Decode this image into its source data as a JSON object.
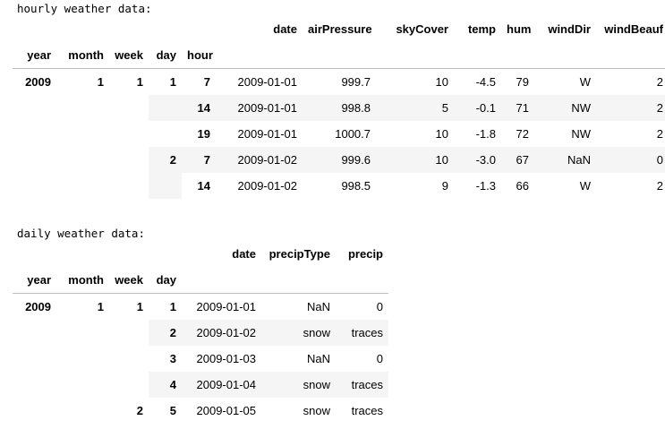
{
  "hourly": {
    "caption": "hourly weather data:",
    "columns": [
      "date",
      "airPressure",
      "skyCover",
      "temp",
      "hum",
      "windDir",
      "windBeauf"
    ],
    "index_names": [
      "year",
      "month",
      "week",
      "day",
      "hour"
    ],
    "rows": [
      {
        "idx": [
          "2009",
          "1",
          "1",
          "1",
          "7"
        ],
        "vals": [
          "2009-01-01",
          "999.7",
          "10",
          "-4.5",
          "79",
          "W",
          "2"
        ]
      },
      {
        "idx": [
          "",
          "",
          "",
          "",
          "14"
        ],
        "vals": [
          "2009-01-01",
          "998.8",
          "5",
          "-0.1",
          "71",
          "NW",
          "2"
        ]
      },
      {
        "idx": [
          "",
          "",
          "",
          "",
          "19"
        ],
        "vals": [
          "2009-01-01",
          "1000.7",
          "10",
          "-1.8",
          "72",
          "NW",
          "2"
        ]
      },
      {
        "idx": [
          "",
          "",
          "",
          "2",
          "7"
        ],
        "vals": [
          "2009-01-02",
          "999.6",
          "10",
          "-3.0",
          "67",
          "NaN",
          "0"
        ]
      },
      {
        "idx": [
          "",
          "",
          "",
          "",
          "14"
        ],
        "vals": [
          "2009-01-02",
          "998.5",
          "9",
          "-1.3",
          "66",
          "W",
          "2"
        ]
      }
    ]
  },
  "daily": {
    "caption": "daily weather data:",
    "columns": [
      "date",
      "precipType",
      "precip"
    ],
    "index_names": [
      "year",
      "month",
      "week",
      "day"
    ],
    "rows": [
      {
        "idx": [
          "2009",
          "1",
          "1",
          "1"
        ],
        "vals": [
          "2009-01-01",
          "NaN",
          "0"
        ]
      },
      {
        "idx": [
          "",
          "",
          "",
          "2"
        ],
        "vals": [
          "2009-01-02",
          "snow",
          "traces"
        ]
      },
      {
        "idx": [
          "",
          "",
          "",
          "3"
        ],
        "vals": [
          "2009-01-03",
          "NaN",
          "0"
        ]
      },
      {
        "idx": [
          "",
          "",
          "",
          "4"
        ],
        "vals": [
          "2009-01-04",
          "snow",
          "traces"
        ]
      },
      {
        "idx": [
          "",
          "",
          "2",
          "5"
        ],
        "vals": [
          "2009-01-05",
          "snow",
          "traces"
        ]
      }
    ]
  }
}
